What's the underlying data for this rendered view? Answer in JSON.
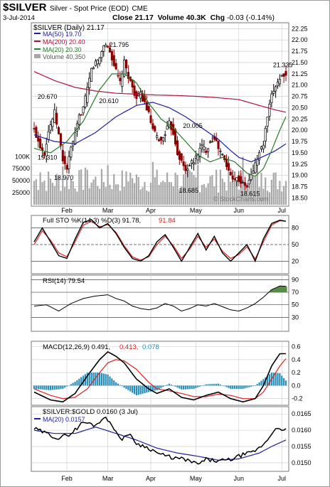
{
  "header": {
    "symbol": "$SILVER",
    "name": "Silver - Spot Price (EOD)",
    "exchange": "CME",
    "date": "3-Jul-2014",
    "close_label": "Close",
    "close_value": "21.17",
    "volume_label": "Volume",
    "volume_value": "40.3K",
    "chg_label": "Chg",
    "chg_value": "-0.03 (-0.14%)",
    "watermark": "© StockCharts.com"
  },
  "colors": {
    "ma50": "#1f1f9e",
    "ma200": "#b0103a",
    "ma20": "#2a7a2a",
    "up": "#000000",
    "down": "#8b0000",
    "volume": "#a8a8a8",
    "k_line": "#000000",
    "d_line": "#e02020",
    "rsi_fill": "#5a8a4a",
    "hist": "#2a8fb8",
    "ratio_line": "#000000",
    "ratio_ma": "#1f1f9e",
    "grid": "#c8c8c8"
  },
  "chart_data": [
    {
      "type": "candlestick",
      "title": "$SILVER (Daily) 21.17",
      "legend": [
        {
          "label": "MA(50) 19.70",
          "color": "#1f1f9e"
        },
        {
          "label": "MA(200) 20.40",
          "color": "#b0103a"
        },
        {
          "label": "MA(20) 20.30",
          "color": "#2a7a2a"
        },
        {
          "label": "Volume 40,350",
          "color": "#a8a8a8"
        }
      ],
      "ylim": [
        18.35,
        22.35
      ],
      "yticks": [
        "22.25",
        "22.00",
        "21.75",
        "21.50",
        "21.25",
        "21.00",
        "20.75",
        "20.50",
        "20.25",
        "20.00",
        "19.75",
        "19.50",
        "19.25",
        "19.00",
        "18.75",
        "18.50"
      ],
      "volume_ticks": [
        "100K",
        "75000",
        "50000",
        "25000"
      ],
      "volume_max": 130000,
      "xticks": [
        {
          "label": "Feb",
          "index": 16
        },
        {
          "label": "Mar",
          "index": 36
        },
        {
          "label": "Apr",
          "index": 57
        },
        {
          "label": "May",
          "index": 79
        },
        {
          "label": "Jun",
          "index": 100
        },
        {
          "label": "Jul",
          "index": 121
        }
      ],
      "n_points": 124,
      "price_anchors": [
        [
          0,
          20.0
        ],
        [
          3,
          19.65
        ],
        [
          5,
          19.5
        ],
        [
          7,
          19.98
        ],
        [
          10,
          20.4
        ],
        [
          12,
          19.9
        ],
        [
          14,
          19.35
        ],
        [
          16,
          19.15
        ],
        [
          18,
          19.6
        ],
        [
          20,
          19.9
        ],
        [
          22,
          20.3
        ],
        [
          24,
          20.5
        ],
        [
          26,
          20.9
        ],
        [
          28,
          21.35
        ],
        [
          30,
          21.5
        ],
        [
          32,
          21.6
        ],
        [
          34,
          21.9
        ],
        [
          36,
          21.85
        ],
        [
          38,
          21.6
        ],
        [
          40,
          21.3
        ],
        [
          42,
          21.05
        ],
        [
          44,
          21.5
        ],
        [
          46,
          21.2
        ],
        [
          48,
          20.95
        ],
        [
          50,
          20.7
        ],
        [
          52,
          20.8
        ],
        [
          54,
          20.6
        ],
        [
          56,
          20.35
        ],
        [
          58,
          20.0
        ],
        [
          60,
          19.85
        ],
        [
          62,
          19.75
        ],
        [
          64,
          19.95
        ],
        [
          66,
          20.15
        ],
        [
          68,
          19.95
        ],
        [
          70,
          19.5
        ],
        [
          72,
          19.3
        ],
        [
          74,
          19.1
        ],
        [
          76,
          19.25
        ],
        [
          78,
          19.3
        ],
        [
          80,
          19.5
        ],
        [
          82,
          19.65
        ],
        [
          84,
          19.55
        ],
        [
          86,
          19.75
        ],
        [
          88,
          19.85
        ],
        [
          90,
          19.6
        ],
        [
          92,
          19.45
        ],
        [
          94,
          19.2
        ],
        [
          96,
          19.0
        ],
        [
          98,
          18.95
        ],
        [
          100,
          18.9
        ],
        [
          102,
          18.8
        ],
        [
          104,
          18.75
        ],
        [
          106,
          19.0
        ],
        [
          108,
          19.25
        ],
        [
          110,
          19.5
        ],
        [
          112,
          19.7
        ],
        [
          114,
          20.3
        ],
        [
          116,
          20.75
        ],
        [
          118,
          21.0
        ],
        [
          120,
          21.15
        ],
        [
          122,
          21.25
        ],
        [
          123,
          21.17
        ]
      ],
      "ma200_anchors": [
        [
          0,
          21.3
        ],
        [
          10,
          21.1
        ],
        [
          20,
          20.95
        ],
        [
          30,
          20.87
        ],
        [
          40,
          20.82
        ],
        [
          50,
          20.8
        ],
        [
          60,
          20.78
        ],
        [
          70,
          20.77
        ],
        [
          80,
          20.75
        ],
        [
          90,
          20.72
        ],
        [
          100,
          20.68
        ],
        [
          110,
          20.55
        ],
        [
          118,
          20.45
        ],
        [
          123,
          20.4
        ]
      ],
      "ma50_anchors": [
        [
          0,
          19.9
        ],
        [
          10,
          19.75
        ],
        [
          20,
          19.7
        ],
        [
          30,
          19.95
        ],
        [
          40,
          20.3
        ],
        [
          50,
          20.55
        ],
        [
          58,
          20.62
        ],
        [
          66,
          20.5
        ],
        [
          74,
          20.3
        ],
        [
          82,
          20.05
        ],
        [
          90,
          19.8
        ],
        [
          96,
          19.55
        ],
        [
          100,
          19.4
        ],
        [
          106,
          19.3
        ],
        [
          112,
          19.42
        ],
        [
          118,
          19.55
        ],
        [
          123,
          19.7
        ]
      ],
      "ma20_anchors": [
        [
          0,
          19.6
        ],
        [
          8,
          19.5
        ],
        [
          16,
          19.75
        ],
        [
          24,
          20.2
        ],
        [
          32,
          20.9
        ],
        [
          38,
          21.25
        ],
        [
          44,
          21.25
        ],
        [
          50,
          21.05
        ],
        [
          56,
          20.6
        ],
        [
          62,
          20.25
        ],
        [
          68,
          20.05
        ],
        [
          74,
          19.75
        ],
        [
          80,
          19.45
        ],
        [
          86,
          19.3
        ],
        [
          92,
          19.4
        ],
        [
          98,
          19.3
        ],
        [
          104,
          19.05
        ],
        [
          108,
          18.98
        ],
        [
          112,
          19.15
        ],
        [
          116,
          19.55
        ],
        [
          120,
          20.0
        ],
        [
          123,
          20.3
        ]
      ],
      "annotations": [
        {
          "label": "20.670",
          "index": 1,
          "value": 20.7
        },
        {
          "label": "19.310",
          "index": 1,
          "value": 19.35
        },
        {
          "label": "18.970",
          "index": 9,
          "value": 18.9
        },
        {
          "label": "20.610",
          "index": 31,
          "value": 20.6
        },
        {
          "label": "21.795",
          "index": 36,
          "value": 21.85
        },
        {
          "label": "20.005",
          "index": 72,
          "value": 20.05
        },
        {
          "label": "18.685",
          "index": 70,
          "value": 18.62
        },
        {
          "label": "18.615",
          "index": 100,
          "value": 18.55
        },
        {
          "label": "21.335",
          "index": 116,
          "value": 21.4
        }
      ]
    },
    {
      "type": "line",
      "title": "Full STO %K(14,3) %D(3) 91.78, 91.84",
      "ylim": [
        0,
        100
      ],
      "yticks": [
        80,
        50,
        20
      ],
      "k_anchors": [
        [
          0,
          55
        ],
        [
          4,
          80
        ],
        [
          8,
          55
        ],
        [
          12,
          30
        ],
        [
          16,
          25
        ],
        [
          20,
          60
        ],
        [
          24,
          90
        ],
        [
          28,
          95
        ],
        [
          32,
          80
        ],
        [
          36,
          88
        ],
        [
          40,
          70
        ],
        [
          44,
          45
        ],
        [
          48,
          25
        ],
        [
          52,
          20
        ],
        [
          56,
          30
        ],
        [
          60,
          55
        ],
        [
          64,
          68
        ],
        [
          68,
          45
        ],
        [
          72,
          20
        ],
        [
          76,
          45
        ],
        [
          80,
          70
        ],
        [
          84,
          40
        ],
        [
          88,
          65
        ],
        [
          92,
          35
        ],
        [
          96,
          20
        ],
        [
          100,
          35
        ],
        [
          104,
          50
        ],
        [
          108,
          20
        ],
        [
          112,
          60
        ],
        [
          116,
          88
        ],
        [
          120,
          94
        ],
        [
          123,
          92
        ]
      ],
      "d_anchors": [
        [
          0,
          50
        ],
        [
          4,
          75
        ],
        [
          8,
          58
        ],
        [
          12,
          35
        ],
        [
          16,
          28
        ],
        [
          20,
          55
        ],
        [
          24,
          85
        ],
        [
          28,
          92
        ],
        [
          32,
          82
        ],
        [
          36,
          86
        ],
        [
          40,
          72
        ],
        [
          44,
          48
        ],
        [
          48,
          28
        ],
        [
          52,
          22
        ],
        [
          56,
          28
        ],
        [
          60,
          50
        ],
        [
          64,
          65
        ],
        [
          68,
          48
        ],
        [
          72,
          25
        ],
        [
          76,
          42
        ],
        [
          80,
          65
        ],
        [
          84,
          45
        ],
        [
          88,
          60
        ],
        [
          92,
          38
        ],
        [
          96,
          25
        ],
        [
          100,
          32
        ],
        [
          104,
          46
        ],
        [
          108,
          24
        ],
        [
          112,
          55
        ],
        [
          116,
          85
        ],
        [
          120,
          93
        ],
        [
          123,
          92
        ]
      ],
      "k_label": "Full STO %K(14,3) %D(3) 91.78,",
      "d_label": "91.84"
    },
    {
      "type": "area",
      "title": "RSI(14) 79.54",
      "ylim": [
        10,
        95
      ],
      "yticks": [
        90,
        70,
        50,
        30
      ],
      "rsi_anchors": [
        [
          0,
          48
        ],
        [
          6,
          50
        ],
        [
          12,
          40
        ],
        [
          18,
          52
        ],
        [
          24,
          60
        ],
        [
          30,
          64
        ],
        [
          36,
          66
        ],
        [
          40,
          60
        ],
        [
          44,
          56
        ],
        [
          48,
          48
        ],
        [
          52,
          44
        ],
        [
          56,
          42
        ],
        [
          60,
          45
        ],
        [
          64,
          52
        ],
        [
          68,
          48
        ],
        [
          72,
          40
        ],
        [
          76,
          44
        ],
        [
          80,
          50
        ],
        [
          84,
          48
        ],
        [
          88,
          52
        ],
        [
          92,
          47
        ],
        [
          96,
          42
        ],
        [
          100,
          40
        ],
        [
          104,
          45
        ],
        [
          108,
          52
        ],
        [
          112,
          62
        ],
        [
          116,
          74
        ],
        [
          120,
          80
        ],
        [
          123,
          79.5
        ]
      ]
    },
    {
      "type": "bar",
      "title": "MACD(12,26,9) 0.491, 0.413, 0.078",
      "macd_label": "MACD(12,26,9) 0.491,",
      "signal_label": "0.413,",
      "hist_label": "0.078",
      "ylim": [
        -0.28,
        0.66
      ],
      "yticks": [
        "0.6",
        "0.4",
        "0.2",
        "0.0",
        "-0.2"
      ],
      "yticks_values": [
        0.6,
        0.4,
        0.2,
        0.0,
        -0.2
      ],
      "macd_anchors": [
        [
          0,
          -0.1
        ],
        [
          8,
          -0.22
        ],
        [
          14,
          -0.25
        ],
        [
          20,
          -0.12
        ],
        [
          26,
          0.15
        ],
        [
          32,
          0.4
        ],
        [
          36,
          0.52
        ],
        [
          40,
          0.45
        ],
        [
          44,
          0.35
        ],
        [
          50,
          0.1
        ],
        [
          56,
          -0.05
        ],
        [
          60,
          -0.12
        ],
        [
          66,
          -0.05
        ],
        [
          72,
          -0.18
        ],
        [
          78,
          -0.22
        ],
        [
          84,
          -0.15
        ],
        [
          90,
          -0.1
        ],
        [
          96,
          -0.2
        ],
        [
          102,
          -0.25
        ],
        [
          108,
          -0.2
        ],
        [
          112,
          0.0
        ],
        [
          116,
          0.3
        ],
        [
          120,
          0.49
        ],
        [
          123,
          0.491
        ]
      ],
      "signal_anchors": [
        [
          0,
          -0.05
        ],
        [
          8,
          -0.15
        ],
        [
          14,
          -0.2
        ],
        [
          20,
          -0.18
        ],
        [
          26,
          -0.05
        ],
        [
          32,
          0.2
        ],
        [
          36,
          0.35
        ],
        [
          40,
          0.4
        ],
        [
          44,
          0.38
        ],
        [
          50,
          0.25
        ],
        [
          56,
          0.05
        ],
        [
          60,
          -0.05
        ],
        [
          66,
          -0.08
        ],
        [
          72,
          -0.12
        ],
        [
          78,
          -0.17
        ],
        [
          84,
          -0.17
        ],
        [
          90,
          -0.13
        ],
        [
          96,
          -0.15
        ],
        [
          102,
          -0.2
        ],
        [
          108,
          -0.2
        ],
        [
          112,
          -0.1
        ],
        [
          116,
          0.1
        ],
        [
          120,
          0.3
        ],
        [
          123,
          0.413
        ]
      ]
    },
    {
      "type": "line",
      "title": "$SILVER:$GOLD 0.0160 (3 Jul)",
      "legend": [
        {
          "label": "MA(20) 0.0157",
          "color": "#1f1f9e"
        }
      ],
      "ylim": [
        0.01478,
        0.01668
      ],
      "yticks": [
        "0.0165",
        "0.0160",
        "0.0155",
        "0.0150"
      ],
      "yticks_values": [
        0.0165,
        0.016,
        0.0155,
        0.015
      ],
      "ratio_anchors": [
        [
          0,
          0.01605
        ],
        [
          6,
          0.0159
        ],
        [
          12,
          0.01575
        ],
        [
          18,
          0.0159
        ],
        [
          24,
          0.01625
        ],
        [
          30,
          0.01615
        ],
        [
          34,
          0.0164
        ],
        [
          38,
          0.0162
        ],
        [
          42,
          0.0157
        ],
        [
          46,
          0.0159
        ],
        [
          50,
          0.0156
        ],
        [
          56,
          0.01545
        ],
        [
          62,
          0.01525
        ],
        [
          68,
          0.01515
        ],
        [
          74,
          0.0151
        ],
        [
          80,
          0.01495
        ],
        [
          84,
          0.0151
        ],
        [
          90,
          0.01505
        ],
        [
          96,
          0.0151
        ],
        [
          102,
          0.01525
        ],
        [
          106,
          0.0153
        ],
        [
          110,
          0.01545
        ],
        [
          114,
          0.0157
        ],
        [
          118,
          0.0161
        ],
        [
          121,
          0.01595
        ],
        [
          123,
          0.016
        ]
      ],
      "ratio_ma_anchors": [
        [
          0,
          0.016
        ],
        [
          10,
          0.0159
        ],
        [
          20,
          0.0159
        ],
        [
          30,
          0.0161
        ],
        [
          40,
          0.0159
        ],
        [
          50,
          0.0157
        ],
        [
          60,
          0.01545
        ],
        [
          70,
          0.0153
        ],
        [
          80,
          0.0152
        ],
        [
          90,
          0.01508
        ],
        [
          100,
          0.01512
        ],
        [
          110,
          0.0153
        ],
        [
          116,
          0.0155
        ],
        [
          123,
          0.0157
        ]
      ]
    }
  ]
}
